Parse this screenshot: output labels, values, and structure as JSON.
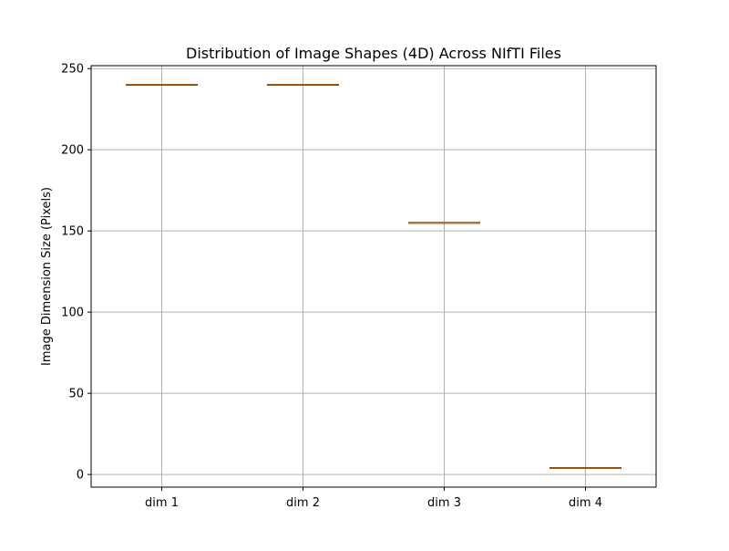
{
  "chart_data": {
    "type": "box",
    "title": "Distribution of Image Shapes (4D) Across NIfTI Files",
    "xlabel": "",
    "ylabel": "Image Dimension Size (Pixels)",
    "categories": [
      "dim 1",
      "dim 2",
      "dim 3",
      "dim 4"
    ],
    "boxes": [
      {
        "label": "dim 1",
        "min": 240,
        "q1": 240,
        "median": 240,
        "q3": 240,
        "max": 240
      },
      {
        "label": "dim 2",
        "min": 240,
        "q1": 240,
        "median": 240,
        "q3": 240,
        "max": 240
      },
      {
        "label": "dim 3",
        "min": 155,
        "q1": 155,
        "median": 155,
        "q3": 155,
        "max": 155
      },
      {
        "label": "dim 4",
        "min": 4,
        "q1": 4,
        "median": 4,
        "q3": 4,
        "max": 4
      }
    ],
    "ylim": [
      -7.8,
      251.8
    ],
    "yticks": [
      0,
      50,
      100,
      150,
      200,
      250
    ],
    "grid": true,
    "colors": {
      "box_edge": "#000000",
      "median": "#ff7f0e",
      "grid": "#b0b0b0"
    }
  }
}
